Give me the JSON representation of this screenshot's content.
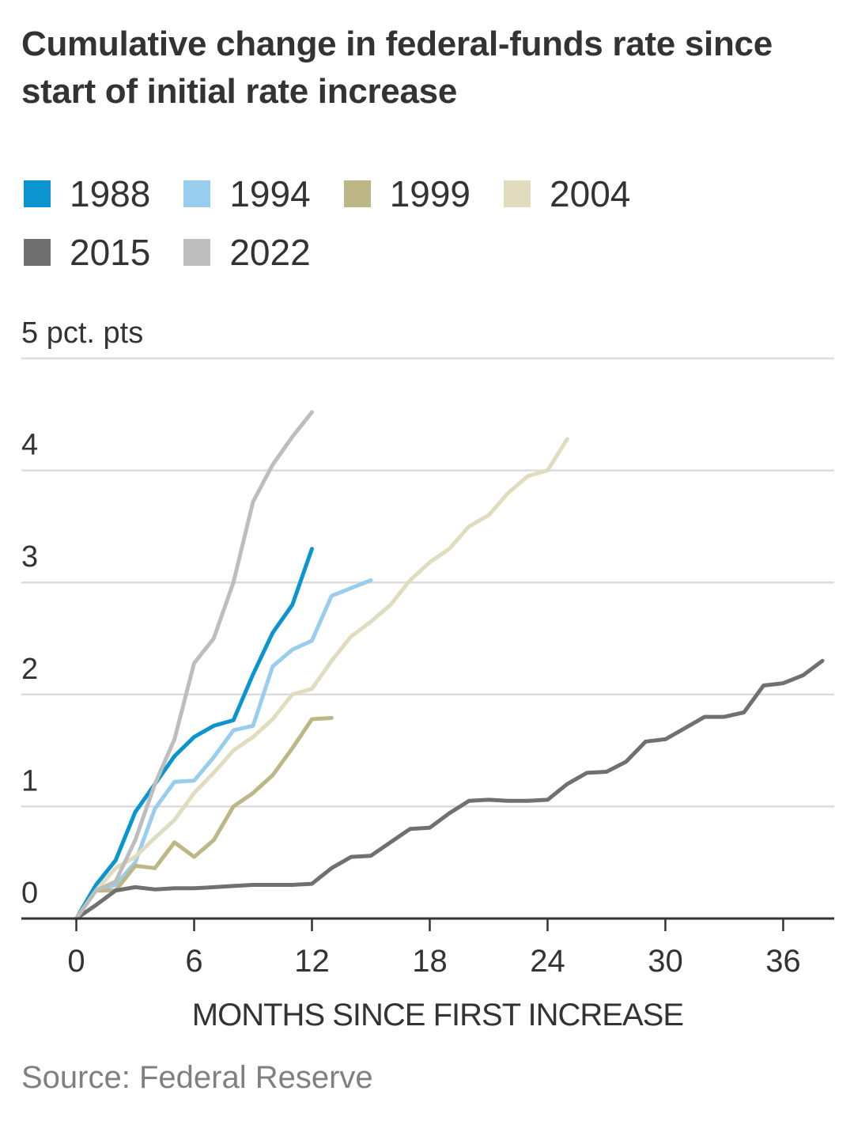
{
  "title": "Cumulative change in federal-funds rate since start of initial rate increase",
  "source": "Source: Federal Reserve",
  "chart_data": {
    "type": "line",
    "xlabel": "MONTHS SINCE FIRST INCREASE",
    "ylabel": "",
    "xlim": [
      -2.8,
      38.6
    ],
    "ylim": [
      0,
      5
    ],
    "xticks": [
      0,
      6,
      12,
      18,
      24,
      30,
      36
    ],
    "xtick_labels": [
      "0",
      "6",
      "12",
      "18",
      "24",
      "30",
      "36"
    ],
    "yticks": [
      0,
      1,
      2,
      3,
      4,
      5
    ],
    "ytick_labels": [
      "0",
      "1",
      "2",
      "3",
      "4",
      "5 pct. pts"
    ],
    "grid": "horizontal",
    "legend": "top",
    "series": [
      {
        "name": "1988",
        "color": "#0a94d0",
        "x": [
          0,
          1,
          2,
          3,
          4,
          5,
          6,
          7,
          8,
          9,
          10,
          11,
          12
        ],
        "values": [
          0,
          0.3,
          0.52,
          0.95,
          1.2,
          1.45,
          1.62,
          1.72,
          1.77,
          2.18,
          2.55,
          2.8,
          3.3
        ]
      },
      {
        "name": "1994",
        "color": "#99cdee",
        "x": [
          0,
          1,
          2,
          3,
          4,
          5,
          6,
          7,
          8,
          9,
          10,
          11,
          12,
          13,
          14,
          15
        ],
        "values": [
          0,
          0.25,
          0.3,
          0.5,
          0.98,
          1.22,
          1.23,
          1.44,
          1.68,
          1.72,
          2.25,
          2.4,
          2.48,
          2.88,
          2.95,
          3.02
        ]
      },
      {
        "name": "1999",
        "color": "#bdb785",
        "x": [
          0,
          1,
          2,
          3,
          4,
          5,
          6,
          7,
          8,
          9,
          10,
          11,
          12,
          13
        ],
        "values": [
          0,
          0.25,
          0.25,
          0.47,
          0.45,
          0.68,
          0.55,
          0.7,
          1.0,
          1.12,
          1.28,
          1.52,
          1.78,
          1.79
        ]
      },
      {
        "name": "2004",
        "color": "#e0dcbd",
        "x": [
          0,
          1,
          2,
          3,
          4,
          5,
          6,
          7,
          8,
          9,
          10,
          11,
          12,
          13,
          14,
          15,
          16,
          17,
          18,
          19,
          20,
          21,
          22,
          23,
          24,
          25
        ],
        "values": [
          0,
          0.25,
          0.45,
          0.55,
          0.72,
          0.88,
          1.12,
          1.3,
          1.5,
          1.62,
          1.78,
          2.0,
          2.05,
          2.3,
          2.52,
          2.65,
          2.8,
          3.02,
          3.18,
          3.3,
          3.5,
          3.6,
          3.8,
          3.95,
          4.0,
          4.28
        ]
      },
      {
        "name": "2015",
        "color": "#707070",
        "x": [
          0,
          1,
          2,
          3,
          4,
          5,
          6,
          7,
          8,
          9,
          10,
          11,
          12,
          13,
          14,
          15,
          16,
          17,
          18,
          19,
          20,
          21,
          22,
          23,
          24,
          25,
          26,
          27,
          28,
          29,
          30,
          31,
          32,
          33,
          34,
          35,
          36,
          37,
          38
        ],
        "values": [
          0,
          0.12,
          0.25,
          0.28,
          0.26,
          0.27,
          0.27,
          0.28,
          0.29,
          0.3,
          0.3,
          0.3,
          0.31,
          0.45,
          0.55,
          0.56,
          0.68,
          0.8,
          0.81,
          0.94,
          1.05,
          1.06,
          1.05,
          1.05,
          1.06,
          1.2,
          1.3,
          1.31,
          1.4,
          1.58,
          1.6,
          1.7,
          1.8,
          1.8,
          1.84,
          2.08,
          2.1,
          2.17,
          2.3
        ]
      },
      {
        "name": "2022",
        "color": "#bdbdbd",
        "x": [
          0,
          1,
          2,
          3,
          4,
          5,
          6,
          7,
          8,
          9,
          10,
          11,
          12
        ],
        "values": [
          0,
          0.25,
          0.33,
          0.7,
          1.2,
          1.6,
          2.28,
          2.5,
          3.0,
          3.72,
          4.05,
          4.3,
          4.52
        ]
      }
    ]
  }
}
